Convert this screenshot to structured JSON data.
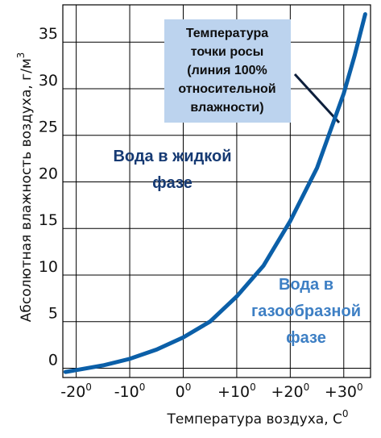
{
  "colors": {
    "curve": "#0b5fa8",
    "liquid_text": "#163a73",
    "gas_text": "#3d7fc4",
    "note_box": "#bcd3ee",
    "grid": "#000000"
  },
  "chart_data": {
    "type": "line",
    "xlabel": "Температура воздуха, С",
    "xlabel_sup": "0",
    "ylabel": "Абсолютная влажность воздуха, г/м",
    "ylabel_sup": "3",
    "xlim": [
      -22.5,
      35
    ],
    "ylim": [
      -1,
      39
    ],
    "grid": true,
    "x_ticks": [
      {
        "value": -20,
        "base": "-20",
        "sup": "0"
      },
      {
        "value": -10,
        "base": "-10",
        "sup": "0"
      },
      {
        "value": 0,
        "base": "0",
        "sup": "0"
      },
      {
        "value": 10,
        "base": "+10",
        "sup": "0"
      },
      {
        "value": 20,
        "base": "+20",
        "sup": "0"
      },
      {
        "value": 30,
        "base": "+30",
        "sup": "0"
      }
    ],
    "y_ticks": [
      {
        "value": 0,
        "label": "0"
      },
      {
        "value": 5,
        "label": "5"
      },
      {
        "value": 10,
        "label": "10"
      },
      {
        "value": 15,
        "label": "15"
      },
      {
        "value": 20,
        "label": "20"
      },
      {
        "value": 25,
        "label": "25"
      },
      {
        "value": 30,
        "label": "30"
      },
      {
        "value": 35,
        "label": "35"
      }
    ],
    "series": [
      {
        "x": [
          -22,
          -20,
          -15,
          -10,
          -5,
          0,
          5,
          10,
          15,
          20,
          25,
          30,
          32,
          34
        ],
        "y": [
          -0.4,
          -0.2,
          0.3,
          1.0,
          2.0,
          3.3,
          5.0,
          7.7,
          11.0,
          15.8,
          21.5,
          29.5,
          33.5,
          38.0
        ]
      }
    ],
    "annotations": {
      "liquid": [
        "Вода  в  жидкой",
        "фазе"
      ],
      "gas": [
        "Вода в",
        "газообразной",
        "фазе"
      ],
      "note": [
        "Температура",
        "точки росы",
        "(линия 100%",
        "относительной",
        "влажности)"
      ]
    }
  }
}
